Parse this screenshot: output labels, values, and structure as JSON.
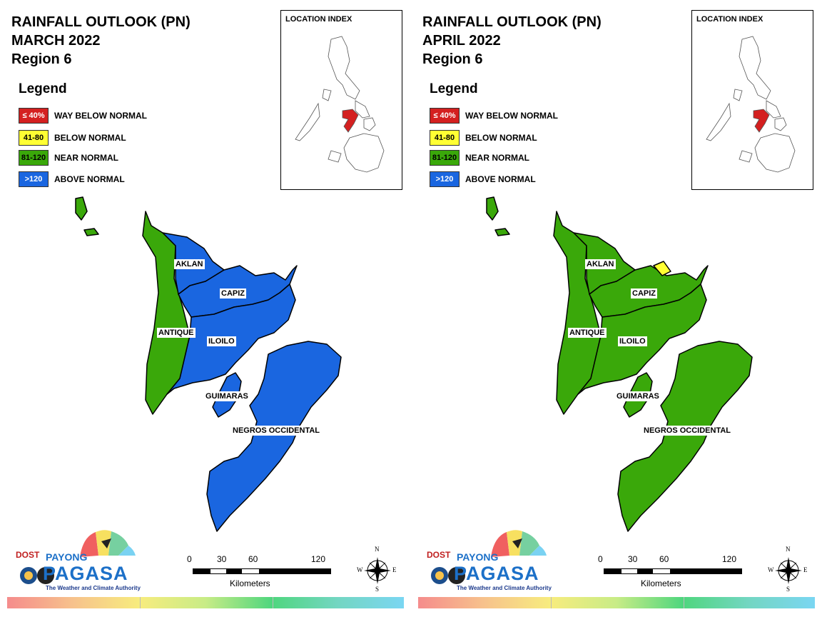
{
  "panels": [
    {
      "title_line1": "RAINFALL OUTLOOK (PN)",
      "title_line2": "MARCH 2022",
      "title_line3": "Region 6",
      "legend_title": "Legend",
      "legend": [
        {
          "range": "≤ 40%",
          "label": "WAY BELOW NORMAL",
          "color": "#d42020"
        },
        {
          "range": "41-80",
          "label": "BELOW NORMAL",
          "color": "#ffff33"
        },
        {
          "range": "81-120",
          "label": "NEAR NORMAL",
          "color": "#3aa80a"
        },
        {
          "range": ">120",
          "label": "ABOVE NORMAL",
          "color": "#1a66e0"
        }
      ],
      "inset_label": "LOCATION INDEX",
      "provinces": {
        "aklan": {
          "name": "AKLAN",
          "category": "ABOVE NORMAL"
        },
        "capiz": {
          "name": "CAPIZ",
          "category": "ABOVE NORMAL"
        },
        "antique": {
          "name": "ANTIQUE",
          "category": "NEAR NORMAL"
        },
        "iloilo": {
          "name": "ILOILO",
          "category": "ABOVE NORMAL"
        },
        "guimaras": {
          "name": "GUIMARAS",
          "category": "ABOVE NORMAL"
        },
        "negros": {
          "name": "NEGROS OCCIDENTAL",
          "category": "ABOVE NORMAL"
        }
      },
      "scale": {
        "ticks": [
          "0",
          "30",
          "60",
          "120"
        ],
        "unit": "Kilometers"
      },
      "compass": {
        "n": "N",
        "s": "S",
        "e": "E",
        "w": "W"
      },
      "logo": {
        "dost": "DOST",
        "payong": "PAYONG",
        "pagasa": "PAGASA",
        "tagline": "The Weather and Climate Authority"
      }
    },
    {
      "title_line1": "RAINFALL OUTLOOK (PN)",
      "title_line2": "APRIL 2022",
      "title_line3": "Region 6",
      "legend_title": "Legend",
      "legend": [
        {
          "range": "≤ 40%",
          "label": "WAY BELOW NORMAL",
          "color": "#d42020"
        },
        {
          "range": "41-80",
          "label": "BELOW NORMAL",
          "color": "#ffff33"
        },
        {
          "range": "81-120",
          "label": "NEAR NORMAL",
          "color": "#3aa80a"
        },
        {
          "range": ">120",
          "label": "ABOVE NORMAL",
          "color": "#1a66e0"
        }
      ],
      "inset_label": "LOCATION INDEX",
      "provinces": {
        "aklan": {
          "name": "AKLAN",
          "category": "NEAR NORMAL"
        },
        "capiz": {
          "name": "CAPIZ",
          "category": "NEAR NORMAL"
        },
        "antique": {
          "name": "ANTIQUE",
          "category": "NEAR NORMAL"
        },
        "iloilo": {
          "name": "ILOILO",
          "category": "NEAR NORMAL"
        },
        "guimaras": {
          "name": "GUIMARAS",
          "category": "NEAR NORMAL"
        },
        "negros": {
          "name": "NEGROS OCCIDENTAL",
          "category": "NEAR NORMAL"
        }
      },
      "scale": {
        "ticks": [
          "0",
          "30",
          "60",
          "120"
        ],
        "unit": "Kilometers"
      },
      "compass": {
        "n": "N",
        "s": "S",
        "e": "E",
        "w": "W"
      },
      "logo": {
        "dost": "DOST",
        "payong": "PAYONG",
        "pagasa": "PAGASA",
        "tagline": "The Weather and Climate Authority"
      }
    }
  ],
  "colors": {
    "outline": "#000000",
    "region_highlight": "#d42020",
    "scale_dark": "#000000",
    "scale_light": "#ffffff"
  }
}
